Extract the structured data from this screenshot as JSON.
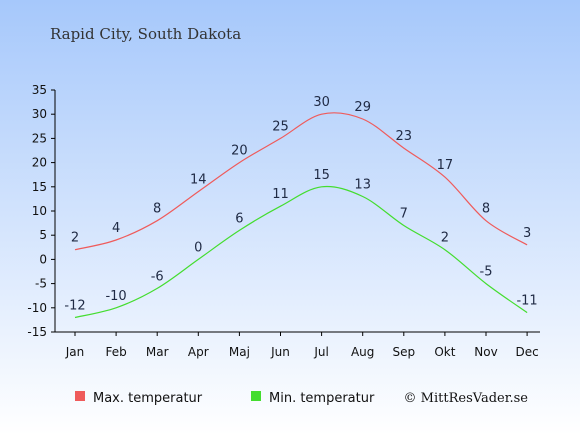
{
  "page": {
    "title": "Rapid City, South Dakota",
    "credit": "© MittResVader.se"
  },
  "colors": {
    "bg_top": "#a6c8fb",
    "bg_bottom": "#ffffff",
    "max_line": "#ef5b5b",
    "min_line": "#44dd2f",
    "axis": "#000000"
  },
  "chart_data": {
    "type": "line",
    "categories": [
      "Jan",
      "Feb",
      "Mar",
      "Apr",
      "Maj",
      "Jun",
      "Jul",
      "Aug",
      "Sep",
      "Okt",
      "Nov",
      "Dec"
    ],
    "series": [
      {
        "name": "Max. temperatur",
        "values": [
          2,
          4,
          8,
          14,
          20,
          25,
          30,
          29,
          23,
          17,
          8,
          3
        ]
      },
      {
        "name": "Min. temperatur",
        "values": [
          -12,
          -10,
          -6,
          0,
          6,
          11,
          15,
          13,
          7,
          2,
          -5,
          -11
        ]
      }
    ],
    "ylim": [
      -15,
      35
    ],
    "yticks": [
      35,
      30,
      25,
      20,
      15,
      10,
      5,
      0,
      -5,
      -10,
      -15
    ],
    "legend_position": "bottom-left",
    "grid": false
  }
}
